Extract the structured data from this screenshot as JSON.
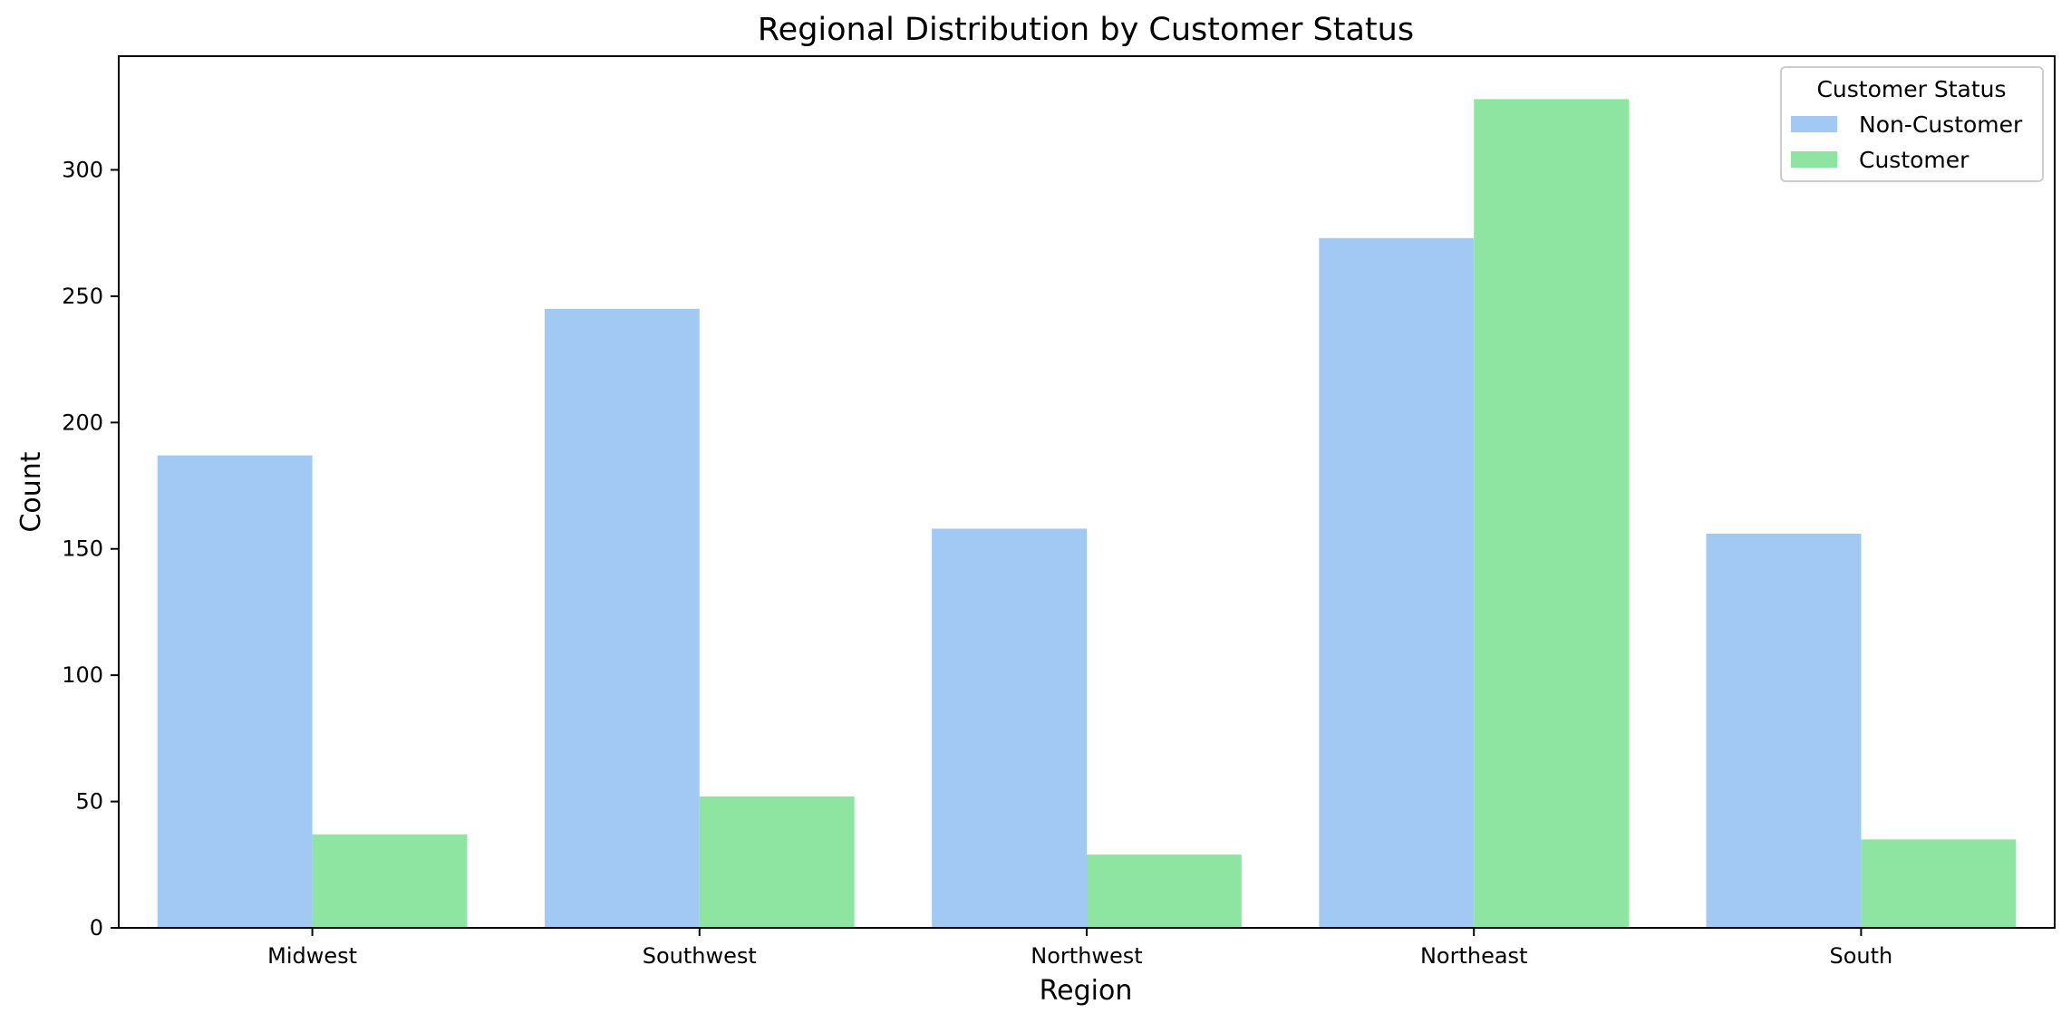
{
  "chart_data": {
    "type": "bar",
    "title": "Regional Distribution by Customer Status",
    "xlabel": "Region",
    "ylabel": "Count",
    "categories": [
      "Midwest",
      "Southwest",
      "Northwest",
      "Northeast",
      "South"
    ],
    "series": [
      {
        "name": "Non-Customer",
        "color": "#a1c9f4",
        "values": [
          187,
          245,
          158,
          273,
          156
        ]
      },
      {
        "name": "Customer",
        "color": "#8de5a1",
        "values": [
          37,
          52,
          29,
          328,
          35
        ]
      }
    ],
    "ylim": [
      0,
      345
    ],
    "yticks": [
      0,
      50,
      100,
      150,
      200,
      250,
      300
    ],
    "legend": {
      "title": "Customer Status",
      "position": "top-right"
    },
    "grid": false
  }
}
